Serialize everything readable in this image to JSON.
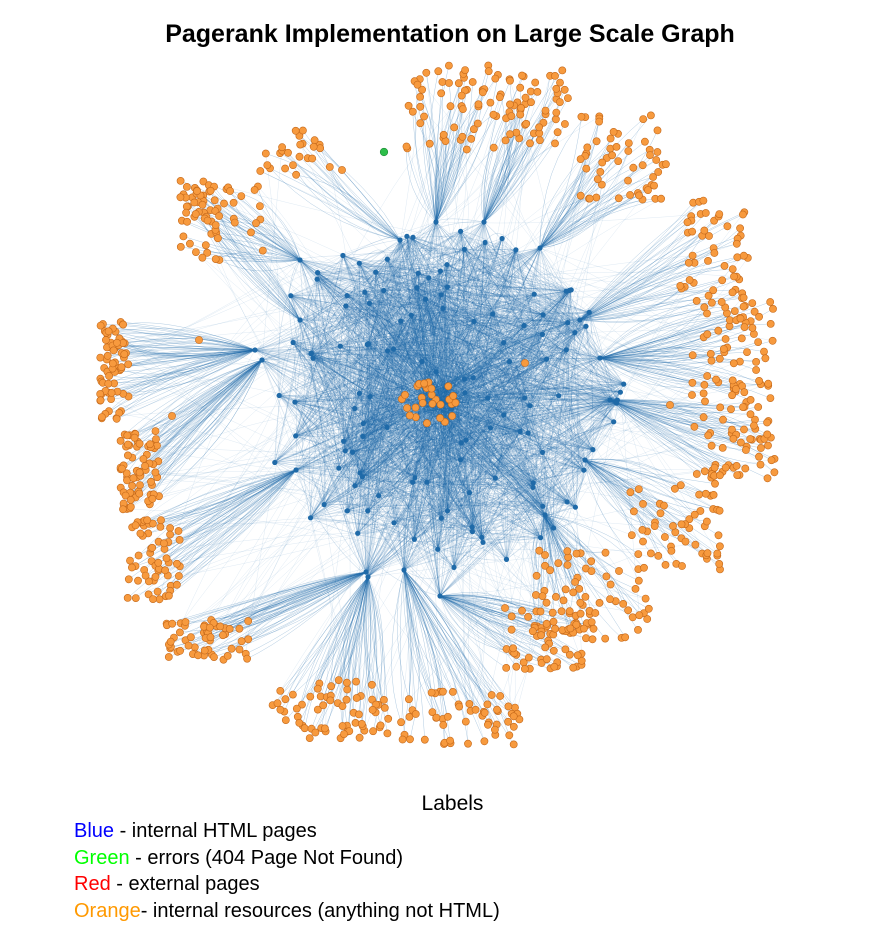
{
  "title": "Pagerank Implementation on Large Scale Graph",
  "legend": {
    "heading": "Labels",
    "items": [
      {
        "key": "blue",
        "color_word": "Blue",
        "color": "#0000ff",
        "description": " - internal HTML pages"
      },
      {
        "key": "green",
        "color_word": "Green",
        "color": "#00ff00",
        "description": " - errors (404 Page Not Found)"
      },
      {
        "key": "red",
        "color_word": "Red",
        "color": "#ff0000",
        "description": " - external pages"
      },
      {
        "key": "orange",
        "color_word": "Orange",
        "color": "#ff9900",
        "description": "- internal resources (anything not HTML)"
      }
    ]
  },
  "graph": {
    "edge_color": "#1f6aa8",
    "hub_color": "#1f6aa8",
    "resource_color": "#f79a3e",
    "resource_stroke": "#c4681a",
    "error_color": "#2dbe4a"
  }
}
